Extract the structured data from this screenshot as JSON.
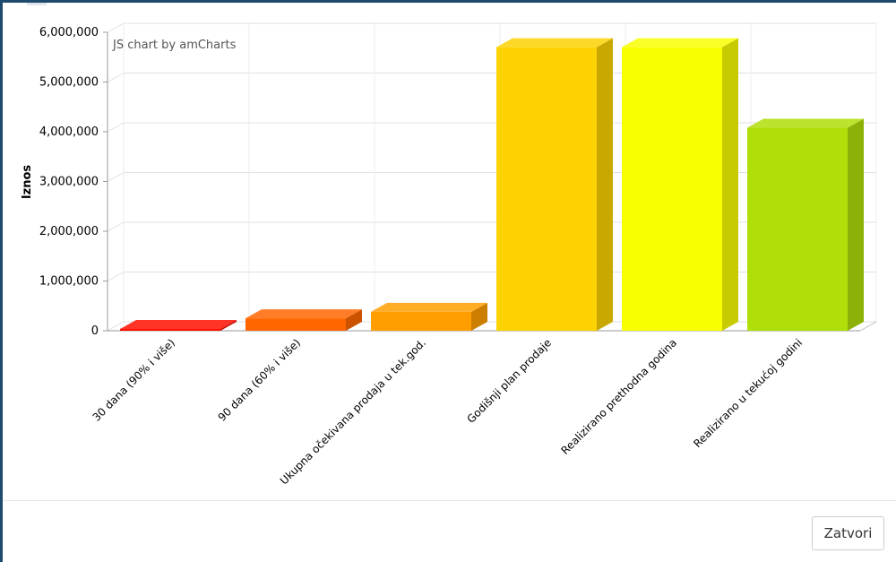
{
  "chart_data": {
    "type": "bar",
    "style": "3d-columns",
    "credit": "JS chart by amCharts",
    "ylabel": "Iznos",
    "xlabel": "",
    "ylim": [
      0,
      6000000
    ],
    "yticks": [
      0,
      1000000,
      2000000,
      3000000,
      4000000,
      5000000,
      6000000
    ],
    "ytick_labels": [
      "0",
      "1,000,000",
      "2,000,000",
      "3,000,000",
      "4,000,000",
      "5,000,000",
      "6,000,000"
    ],
    "grid": true,
    "categories": [
      "30 dana (90% i više)",
      "90 dana (60% i više)",
      "Ukupna očekivana prodaja u tek.god.",
      "Godišnji plan prodaje",
      "Realizirano prethodna godina",
      "Realizirano u tekućoj godini"
    ],
    "values": [
      20000,
      250000,
      380000,
      5700000,
      5700000,
      4080000
    ],
    "colors": [
      "#ff0f00",
      "#ff6600",
      "#ff9e01",
      "#fcd202",
      "#f8ff01",
      "#b0de09"
    ]
  },
  "footer": {
    "close_label": "Zatvori"
  }
}
